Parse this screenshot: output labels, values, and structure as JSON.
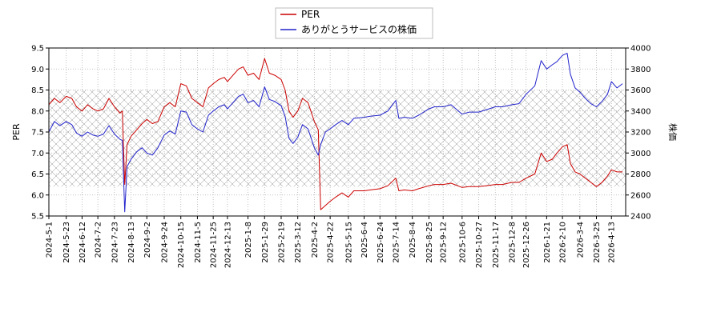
{
  "chart_data": {
    "type": "line",
    "title": "",
    "xlabel": "",
    "ylabel_left": "PER",
    "ylabel_right": "株価",
    "grid": true,
    "legend_placement": "top-center",
    "xlim": [
      "2024-05-01",
      "2026-05-01"
    ],
    "ylim_left": [
      5.5,
      9.5
    ],
    "ylim_right": [
      2400,
      4000
    ],
    "yticks_left": [
      "5.5",
      "6.0",
      "6.5",
      "7.0",
      "7.5",
      "8.0",
      "8.5",
      "9.0",
      "9.5"
    ],
    "yticks_right": [
      "2400",
      "2600",
      "2800",
      "3000",
      "3200",
      "3400",
      "3600",
      "3800",
      "4000"
    ],
    "xticks": [
      "2024-5-1",
      "2024-5-23",
      "2024-6-12",
      "2024-7-2",
      "2024-7-23",
      "2024-8-13",
      "2024-9-2",
      "2024-9-24",
      "2024-10-15",
      "2024-11-5",
      "2024-11-25",
      "2024-12-13",
      "2025-1-8",
      "2025-1-29",
      "2025-2-19",
      "2025-3-12",
      "2025-4-2",
      "2025-4-22",
      "2025-5-15",
      "2025-6-4",
      "2025-6-24",
      "2025-7-14",
      "2025-8-4",
      "2025-8-25",
      "2025-9-12",
      "2025-10-6",
      "2025-10-27",
      "2025-11-17",
      "2025-12-8",
      "2025-12-26",
      "2026-1-21",
      "2026-2-10",
      "2026-3-4",
      "2026-3-25",
      "2026-4-13"
    ],
    "band_right": [
      2680,
      3600
    ],
    "series": [
      {
        "name": "PER",
        "axis": "left",
        "color": "#cc0000",
        "points": [
          [
            "2024-05-01",
            8.15
          ],
          [
            "2024-05-08",
            8.3
          ],
          [
            "2024-05-15",
            8.2
          ],
          [
            "2024-05-23",
            8.35
          ],
          [
            "2024-05-30",
            8.3
          ],
          [
            "2024-06-05",
            8.1
          ],
          [
            "2024-06-12",
            8.0
          ],
          [
            "2024-06-19",
            8.15
          ],
          [
            "2024-06-26",
            8.05
          ],
          [
            "2024-07-02",
            8.0
          ],
          [
            "2024-07-09",
            8.05
          ],
          [
            "2024-07-16",
            8.3
          ],
          [
            "2024-07-23",
            8.1
          ],
          [
            "2024-07-30",
            7.95
          ],
          [
            "2024-08-02",
            8.0
          ],
          [
            "2024-08-05",
            6.25
          ],
          [
            "2024-08-08",
            7.2
          ],
          [
            "2024-08-13",
            7.4
          ],
          [
            "2024-08-20",
            7.55
          ],
          [
            "2024-08-27",
            7.7
          ],
          [
            "2024-09-02",
            7.8
          ],
          [
            "2024-09-09",
            7.7
          ],
          [
            "2024-09-16",
            7.75
          ],
          [
            "2024-09-24",
            8.1
          ],
          [
            "2024-10-01",
            8.2
          ],
          [
            "2024-10-08",
            8.1
          ],
          [
            "2024-10-15",
            8.65
          ],
          [
            "2024-10-22",
            8.6
          ],
          [
            "2024-10-29",
            8.3
          ],
          [
            "2024-11-05",
            8.2
          ],
          [
            "2024-11-12",
            8.1
          ],
          [
            "2024-11-19",
            8.55
          ],
          [
            "2024-11-25",
            8.65
          ],
          [
            "2024-12-02",
            8.75
          ],
          [
            "2024-12-09",
            8.8
          ],
          [
            "2024-12-13",
            8.7
          ],
          [
            "2024-12-20",
            8.85
          ],
          [
            "2024-12-27",
            9.0
          ],
          [
            "2025-01-02",
            9.05
          ],
          [
            "2025-01-08",
            8.85
          ],
          [
            "2025-01-15",
            8.9
          ],
          [
            "2025-01-22",
            8.75
          ],
          [
            "2025-01-29",
            9.25
          ],
          [
            "2025-02-04",
            8.9
          ],
          [
            "2025-02-11",
            8.85
          ],
          [
            "2025-02-19",
            8.75
          ],
          [
            "2025-02-24",
            8.5
          ],
          [
            "2025-03-01",
            8.0
          ],
          [
            "2025-03-06",
            7.85
          ],
          [
            "2025-03-12",
            8.0
          ],
          [
            "2025-03-18",
            8.3
          ],
          [
            "2025-03-25",
            8.2
          ],
          [
            "2025-04-02",
            7.75
          ],
          [
            "2025-04-07",
            7.55
          ],
          [
            "2025-04-10",
            5.65
          ],
          [
            "2025-04-16",
            5.75
          ],
          [
            "2025-04-22",
            5.85
          ],
          [
            "2025-04-29",
            5.95
          ],
          [
            "2025-05-07",
            6.05
          ],
          [
            "2025-05-15",
            5.95
          ],
          [
            "2025-05-22",
            6.1
          ],
          [
            "2025-06-04",
            6.1
          ],
          [
            "2025-06-12",
            6.12
          ],
          [
            "2025-06-24",
            6.15
          ],
          [
            "2025-07-04",
            6.22
          ],
          [
            "2025-07-14",
            6.4
          ],
          [
            "2025-07-18",
            6.1
          ],
          [
            "2025-07-25",
            6.12
          ],
          [
            "2025-08-04",
            6.1
          ],
          [
            "2025-08-12",
            6.15
          ],
          [
            "2025-08-25",
            6.22
          ],
          [
            "2025-09-01",
            6.25
          ],
          [
            "2025-09-12",
            6.25
          ],
          [
            "2025-09-22",
            6.28
          ],
          [
            "2025-10-06",
            6.18
          ],
          [
            "2025-10-15",
            6.2
          ],
          [
            "2025-10-27",
            6.2
          ],
          [
            "2025-11-05",
            6.22
          ],
          [
            "2025-11-17",
            6.25
          ],
          [
            "2025-11-26",
            6.25
          ],
          [
            "2025-12-08",
            6.3
          ],
          [
            "2025-12-17",
            6.3
          ],
          [
            "2025-12-26",
            6.4
          ],
          [
            "2026-01-06",
            6.5
          ],
          [
            "2026-01-14",
            7.0
          ],
          [
            "2026-01-21",
            6.8
          ],
          [
            "2026-01-28",
            6.85
          ],
          [
            "2026-02-03",
            7.0
          ],
          [
            "2026-02-10",
            7.15
          ],
          [
            "2026-02-16",
            7.2
          ],
          [
            "2026-02-20",
            6.75
          ],
          [
            "2026-02-26",
            6.55
          ],
          [
            "2026-03-04",
            6.5
          ],
          [
            "2026-03-11",
            6.4
          ],
          [
            "2026-03-18",
            6.3
          ],
          [
            "2026-03-25",
            6.2
          ],
          [
            "2026-04-01",
            6.3
          ],
          [
            "2026-04-08",
            6.45
          ],
          [
            "2026-04-13",
            6.6
          ],
          [
            "2026-04-20",
            6.55
          ],
          [
            "2026-04-27",
            6.55
          ]
        ]
      },
      {
        "name": "ありがとうサービスの株価",
        "axis": "right",
        "color": "#2222cc",
        "points": [
          [
            "2024-05-01",
            3200
          ],
          [
            "2024-05-08",
            3300
          ],
          [
            "2024-05-15",
            3260
          ],
          [
            "2024-05-23",
            3300
          ],
          [
            "2024-05-30",
            3270
          ],
          [
            "2024-06-05",
            3190
          ],
          [
            "2024-06-12",
            3160
          ],
          [
            "2024-06-19",
            3200
          ],
          [
            "2024-06-26",
            3170
          ],
          [
            "2024-07-02",
            3160
          ],
          [
            "2024-07-09",
            3180
          ],
          [
            "2024-07-16",
            3260
          ],
          [
            "2024-07-23",
            3180
          ],
          [
            "2024-07-30",
            3130
          ],
          [
            "2024-08-02",
            3120
          ],
          [
            "2024-08-05",
            2440
          ],
          [
            "2024-08-08",
            2870
          ],
          [
            "2024-08-13",
            2940
          ],
          [
            "2024-08-20",
            3010
          ],
          [
            "2024-08-27",
            3050
          ],
          [
            "2024-09-02",
            3000
          ],
          [
            "2024-09-09",
            2980
          ],
          [
            "2024-09-16",
            3050
          ],
          [
            "2024-09-24",
            3170
          ],
          [
            "2024-10-01",
            3210
          ],
          [
            "2024-10-08",
            3180
          ],
          [
            "2024-10-15",
            3400
          ],
          [
            "2024-10-22",
            3390
          ],
          [
            "2024-10-29",
            3270
          ],
          [
            "2024-11-05",
            3230
          ],
          [
            "2024-11-12",
            3200
          ],
          [
            "2024-11-19",
            3360
          ],
          [
            "2024-11-25",
            3400
          ],
          [
            "2024-12-02",
            3440
          ],
          [
            "2024-12-09",
            3460
          ],
          [
            "2024-12-13",
            3420
          ],
          [
            "2024-12-20",
            3480
          ],
          [
            "2024-12-27",
            3540
          ],
          [
            "2025-01-02",
            3560
          ],
          [
            "2025-01-08",
            3480
          ],
          [
            "2025-01-15",
            3500
          ],
          [
            "2025-01-22",
            3440
          ],
          [
            "2025-01-29",
            3630
          ],
          [
            "2025-02-04",
            3510
          ],
          [
            "2025-02-11",
            3490
          ],
          [
            "2025-02-19",
            3450
          ],
          [
            "2025-02-24",
            3350
          ],
          [
            "2025-03-01",
            3140
          ],
          [
            "2025-03-06",
            3090
          ],
          [
            "2025-03-12",
            3150
          ],
          [
            "2025-03-18",
            3270
          ],
          [
            "2025-03-25",
            3230
          ],
          [
            "2025-04-02",
            3050
          ],
          [
            "2025-04-07",
            2980
          ],
          [
            "2025-04-10",
            3080
          ],
          [
            "2025-04-16",
            3200
          ],
          [
            "2025-04-22",
            3230
          ],
          [
            "2025-04-29",
            3270
          ],
          [
            "2025-05-07",
            3310
          ],
          [
            "2025-05-15",
            3270
          ],
          [
            "2025-05-22",
            3330
          ],
          [
            "2025-06-04",
            3340
          ],
          [
            "2025-06-12",
            3350
          ],
          [
            "2025-06-24",
            3360
          ],
          [
            "2025-07-04",
            3400
          ],
          [
            "2025-07-14",
            3500
          ],
          [
            "2025-07-18",
            3330
          ],
          [
            "2025-07-25",
            3340
          ],
          [
            "2025-08-04",
            3330
          ],
          [
            "2025-08-12",
            3360
          ],
          [
            "2025-08-25",
            3420
          ],
          [
            "2025-09-01",
            3440
          ],
          [
            "2025-09-12",
            3440
          ],
          [
            "2025-09-22",
            3460
          ],
          [
            "2025-10-06",
            3370
          ],
          [
            "2025-10-15",
            3390
          ],
          [
            "2025-10-27",
            3390
          ],
          [
            "2025-11-05",
            3410
          ],
          [
            "2025-11-17",
            3440
          ],
          [
            "2025-11-26",
            3440
          ],
          [
            "2025-12-08",
            3460
          ],
          [
            "2025-12-17",
            3470
          ],
          [
            "2025-12-26",
            3560
          ],
          [
            "2026-01-06",
            3640
          ],
          [
            "2026-01-14",
            3880
          ],
          [
            "2026-01-21",
            3800
          ],
          [
            "2026-01-28",
            3840
          ],
          [
            "2026-02-03",
            3870
          ],
          [
            "2026-02-10",
            3930
          ],
          [
            "2026-02-16",
            3950
          ],
          [
            "2026-02-20",
            3750
          ],
          [
            "2026-02-26",
            3620
          ],
          [
            "2026-03-04",
            3580
          ],
          [
            "2026-03-11",
            3520
          ],
          [
            "2026-03-18",
            3470
          ],
          [
            "2026-03-25",
            3440
          ],
          [
            "2026-04-01",
            3490
          ],
          [
            "2026-04-08",
            3560
          ],
          [
            "2026-04-13",
            3680
          ],
          [
            "2026-04-20",
            3620
          ],
          [
            "2026-04-27",
            3660
          ]
        ]
      }
    ]
  }
}
